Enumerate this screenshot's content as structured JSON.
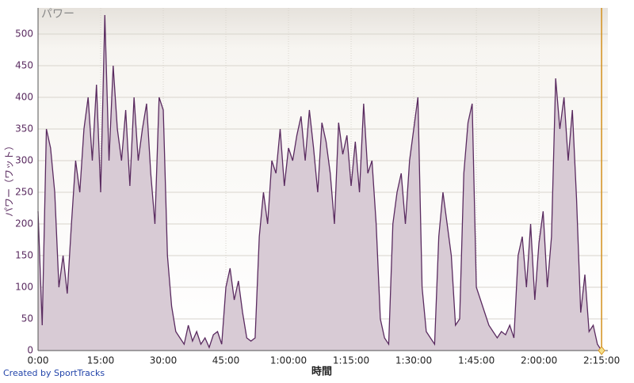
{
  "chart_data": {
    "type": "area",
    "title": "パワー",
    "y_label": "パワー（ワット）",
    "x_label": "時間",
    "footer": "Created by SportTracks",
    "x": [
      0,
      1,
      2,
      3,
      4,
      5,
      6,
      7,
      8,
      9,
      10,
      11,
      12,
      13,
      14,
      15,
      16,
      17,
      18,
      19,
      20,
      21,
      22,
      23,
      24,
      25,
      26,
      27,
      28,
      29,
      30,
      31,
      32,
      33,
      34,
      35,
      36,
      37,
      38,
      39,
      40,
      41,
      42,
      43,
      44,
      45,
      46,
      47,
      48,
      49,
      50,
      51,
      52,
      53,
      54,
      55,
      56,
      57,
      58,
      59,
      60,
      61,
      62,
      63,
      64,
      65,
      66,
      67,
      68,
      69,
      70,
      71,
      72,
      73,
      74,
      75,
      76,
      77,
      78,
      79,
      80,
      81,
      82,
      83,
      84,
      85,
      86,
      87,
      88,
      89,
      90,
      91,
      92,
      93,
      94,
      95,
      96,
      97,
      98,
      99,
      100,
      101,
      102,
      103,
      104,
      105,
      106,
      107,
      108,
      109,
      110,
      111,
      112,
      113,
      114,
      115,
      116,
      117,
      118,
      119,
      120,
      121,
      122,
      123,
      124,
      125,
      126,
      127,
      128,
      129,
      130,
      131,
      132,
      133,
      134,
      135
    ],
    "series": [
      {
        "name": "パワー",
        "color": "#5a2b60",
        "fill": "#d8cbd5",
        "values": [
          220,
          40,
          350,
          320,
          250,
          100,
          150,
          90,
          200,
          300,
          250,
          350,
          400,
          300,
          420,
          250,
          530,
          300,
          450,
          350,
          300,
          380,
          260,
          400,
          300,
          350,
          390,
          280,
          200,
          400,
          380,
          150,
          70,
          30,
          20,
          10,
          40,
          15,
          30,
          10,
          20,
          5,
          25,
          30,
          10,
          100,
          130,
          80,
          110,
          60,
          20,
          15,
          20,
          180,
          250,
          200,
          300,
          280,
          350,
          260,
          320,
          300,
          340,
          370,
          300,
          380,
          320,
          250,
          360,
          330,
          280,
          200,
          360,
          310,
          340,
          260,
          330,
          250,
          390,
          280,
          300,
          200,
          50,
          20,
          10,
          200,
          250,
          280,
          200,
          300,
          350,
          400,
          100,
          30,
          20,
          10,
          180,
          250,
          200,
          150,
          40,
          50,
          280,
          360,
          390,
          100,
          80,
          60,
          40,
          30,
          20,
          30,
          25,
          40,
          20,
          150,
          180,
          100,
          200,
          80,
          170,
          220,
          100,
          180,
          430,
          350,
          400,
          300,
          380,
          240,
          60,
          120,
          30,
          40,
          10,
          0
        ]
      }
    ],
    "xlim": [
      0,
      136.5
    ],
    "ylim": [
      0,
      525
    ],
    "xticks": [
      {
        "value": 0,
        "label": "0:00"
      },
      {
        "value": 15,
        "label": "15:00"
      },
      {
        "value": 30,
        "label": "30:00"
      },
      {
        "value": 45,
        "label": "45:00"
      },
      {
        "value": 60,
        "label": "1:00:00"
      },
      {
        "value": 75,
        "label": "1:15:00"
      },
      {
        "value": 90,
        "label": "1:30:00"
      },
      {
        "value": 105,
        "label": "1:45:00"
      },
      {
        "value": 120,
        "label": "2:00:00"
      },
      {
        "value": 135,
        "label": "2:15:00"
      }
    ],
    "yticks": [
      0,
      50,
      100,
      150,
      200,
      250,
      300,
      350,
      400,
      450,
      500
    ],
    "grid": true,
    "cursor_x": 135,
    "cursor_color": "#d4901c"
  }
}
